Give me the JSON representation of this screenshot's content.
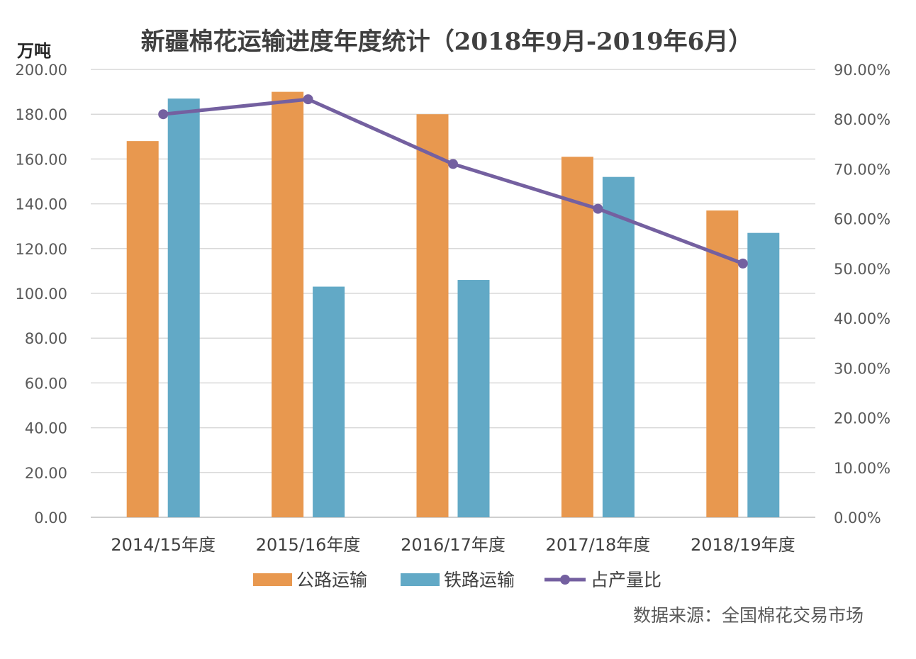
{
  "chart_data": {
    "type": "bar",
    "title": "新疆棉花运输进度年度统计（2018年9月-2019年6月）",
    "ylabel": "万吨",
    "y2label": "",
    "categories": [
      "2014/15年度",
      "2015/16年度",
      "2016/17年度",
      "2017/18年度",
      "2018/19年度"
    ],
    "series": [
      {
        "name": "公路运输",
        "type": "bar",
        "axis": "left",
        "color": "#e8984f",
        "values": [
          168,
          190,
          180,
          161,
          137
        ]
      },
      {
        "name": "铁路运输",
        "type": "bar",
        "axis": "left",
        "color": "#62a9c6",
        "values": [
          187,
          103,
          106,
          152,
          127
        ]
      },
      {
        "name": "占产量比",
        "type": "line",
        "axis": "right",
        "color": "#7460a0",
        "values": [
          0.81,
          0.84,
          0.71,
          0.62,
          0.51
        ]
      }
    ],
    "ylim": [
      0,
      200
    ],
    "y2lim": [
      0,
      0.9
    ],
    "y_ticks": [
      "0.00",
      "20.00",
      "40.00",
      "60.00",
      "80.00",
      "100.00",
      "120.00",
      "140.00",
      "160.00",
      "180.00",
      "200.00"
    ],
    "y2_ticks": [
      "0.00%",
      "10.00%",
      "20.00%",
      "30.00%",
      "40.00%",
      "50.00%",
      "60.00%",
      "70.00%",
      "80.00%",
      "90.00%"
    ],
    "grid": true,
    "legend": "bottom",
    "source": "数据来源：全国棉花交易市场"
  }
}
